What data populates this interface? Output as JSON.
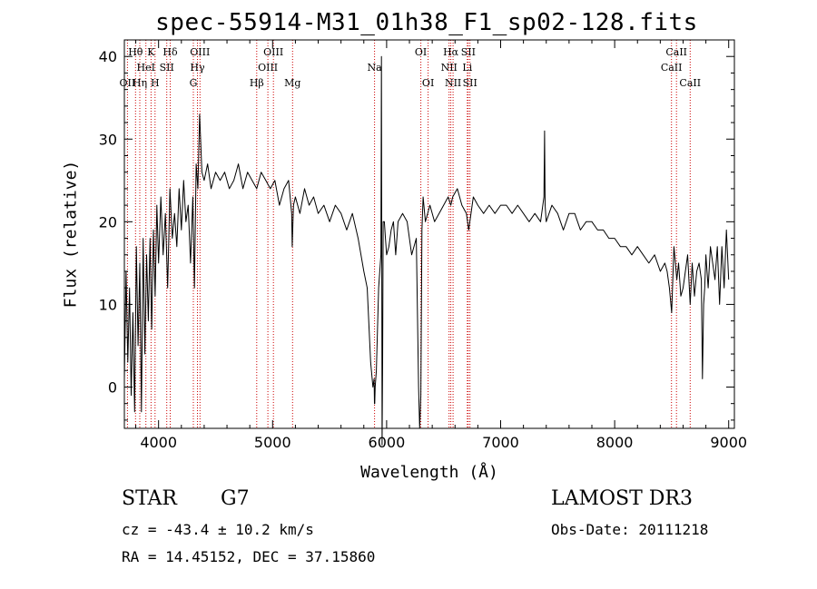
{
  "chart_data": {
    "type": "line",
    "title": "spec-55914-M31_01h38_F1_sp02-128.fits",
    "xlabel": "Wavelength (Å)",
    "ylabel": "Flux (relative)",
    "xlim": [
      3700,
      9050
    ],
    "ylim": [
      -5,
      42
    ],
    "xticks": [
      4000,
      5000,
      6000,
      7000,
      8000,
      9000
    ],
    "yticks": [
      0,
      10,
      20,
      30,
      40
    ],
    "grid": false,
    "series": [
      {
        "name": "flux",
        "x": [
          3700,
          3715,
          3730,
          3745,
          3760,
          3775,
          3790,
          3805,
          3820,
          3835,
          3850,
          3865,
          3880,
          3895,
          3910,
          3925,
          3940,
          3955,
          3970,
          3985,
          4000,
          4020,
          4040,
          4060,
          4080,
          4100,
          4120,
          4140,
          4160,
          4180,
          4200,
          4220,
          4240,
          4260,
          4280,
          4300,
          4315,
          4330,
          4345,
          4360,
          4380,
          4400,
          4430,
          4460,
          4500,
          4540,
          4580,
          4620,
          4660,
          4700,
          4740,
          4780,
          4820,
          4861,
          4900,
          4940,
          4980,
          5020,
          5060,
          5100,
          5140,
          5167,
          5172,
          5183,
          5200,
          5240,
          5280,
          5320,
          5360,
          5400,
          5450,
          5500,
          5550,
          5600,
          5650,
          5700,
          5750,
          5800,
          5830,
          5860,
          5880,
          5890,
          5893,
          5896,
          5900,
          5910,
          5930,
          5950,
          5955,
          5960,
          5965,
          5970,
          5980,
          5990,
          6000,
          6020,
          6040,
          6060,
          6080,
          6100,
          6140,
          6180,
          6220,
          6260,
          6280,
          6290,
          6300,
          6310,
          6320,
          6340,
          6380,
          6420,
          6460,
          6500,
          6540,
          6563,
          6580,
          6620,
          6660,
          6700,
          6720,
          6760,
          6800,
          6850,
          6900,
          6950,
          7000,
          7050,
          7100,
          7150,
          7200,
          7250,
          7300,
          7350,
          7380,
          7385,
          7390,
          7395,
          7400,
          7450,
          7500,
          7550,
          7600,
          7650,
          7700,
          7750,
          7800,
          7850,
          7900,
          7950,
          8000,
          8050,
          8100,
          8150,
          8200,
          8250,
          8300,
          8350,
          8400,
          8440,
          8460,
          8480,
          8500,
          8520,
          8545,
          8560,
          8580,
          8600,
          8620,
          8640,
          8662,
          8680,
          8700,
          8720,
          8740,
          8760,
          8770,
          8780,
          8790,
          8800,
          8820,
          8840,
          8860,
          8880,
          8900,
          8920,
          8940,
          8960,
          8980,
          9000
        ],
        "values": [
          1,
          14,
          3,
          12,
          -1,
          9,
          -3,
          17,
          5,
          15,
          -3,
          18,
          4,
          16,
          8,
          18,
          7,
          19,
          11,
          22,
          15,
          23,
          16,
          21,
          12,
          24,
          18,
          21,
          17,
          24,
          19,
          25,
          20,
          22,
          15,
          23,
          12,
          27,
          24,
          33,
          26,
          25,
          27,
          24,
          26,
          25,
          26,
          24,
          25,
          27,
          24,
          26,
          25,
          24,
          26,
          25,
          24,
          25,
          22,
          24,
          25,
          21,
          17,
          22,
          23,
          21,
          24,
          22,
          23,
          21,
          22,
          20,
          22,
          21,
          19,
          21,
          18,
          14,
          12,
          3,
          0,
          1,
          -2,
          -2,
          0,
          2,
          12,
          16,
          40,
          -7,
          3,
          20,
          20,
          18,
          16,
          17,
          19,
          20,
          16,
          20,
          21,
          20,
          16,
          18,
          0,
          -5,
          -1,
          19,
          23,
          20,
          22,
          20,
          21,
          22,
          23,
          22,
          23,
          24,
          22,
          21,
          19,
          23,
          22,
          21,
          22,
          21,
          22,
          22,
          21,
          22,
          21,
          20,
          21,
          20,
          23,
          31,
          22,
          21,
          20,
          22,
          21,
          19,
          21,
          21,
          19,
          20,
          20,
          19,
          19,
          18,
          18,
          17,
          17,
          16,
          17,
          16,
          15,
          16,
          14,
          15,
          14,
          12,
          9,
          17,
          13,
          15,
          11,
          12,
          14,
          16,
          10,
          15,
          11,
          14,
          15,
          13,
          1,
          10,
          12,
          16,
          12,
          17,
          15,
          13,
          17,
          10,
          17,
          12,
          19,
          13
        ],
        "color": "#000000"
      }
    ],
    "line_markers": [
      {
        "label": "OII",
        "wavelength": 3727,
        "row": 2
      },
      {
        "label": "Hθ",
        "wavelength": 3798,
        "row": 0
      },
      {
        "label": "Hη",
        "wavelength": 3835,
        "row": 2
      },
      {
        "label": "HeI",
        "wavelength": 3889,
        "row": 1
      },
      {
        "label": "K",
        "wavelength": 3934,
        "row": 0
      },
      {
        "label": "H",
        "wavelength": 3969,
        "row": 2
      },
      {
        "label": "SII",
        "wavelength": 4072,
        "row": 1
      },
      {
        "label": "Hδ",
        "wavelength": 4102,
        "row": 0
      },
      {
        "label": "G",
        "wavelength": 4305,
        "row": 2
      },
      {
        "label": "Hγ",
        "wavelength": 4341,
        "row": 1
      },
      {
        "label": "OIII",
        "wavelength": 4363,
        "row": 0
      },
      {
        "label": "Hβ",
        "wavelength": 4861,
        "row": 2
      },
      {
        "label": "OIII",
        "wavelength": 4959,
        "row": 1
      },
      {
        "label": "OIII",
        "wavelength": 5007,
        "row": 0
      },
      {
        "label": "Mg",
        "wavelength": 5175,
        "row": 2
      },
      {
        "label": "Na",
        "wavelength": 5894,
        "row": 1
      },
      {
        "label": "OI",
        "wavelength": 6300,
        "row": 0
      },
      {
        "label": "OI",
        "wavelength": 6364,
        "row": 2
      },
      {
        "label": "NII",
        "wavelength": 6548,
        "row": 1
      },
      {
        "label": "Hα",
        "wavelength": 6563,
        "row": 0
      },
      {
        "label": "NII",
        "wavelength": 6583,
        "row": 2
      },
      {
        "label": "Li",
        "wavelength": 6708,
        "row": 1
      },
      {
        "label": "SII",
        "wavelength": 6716,
        "row": 0
      },
      {
        "label": "SII",
        "wavelength": 6731,
        "row": 2
      },
      {
        "label": "CaII",
        "wavelength": 8498,
        "row": 1
      },
      {
        "label": "CaII",
        "wavelength": 8542,
        "row": 0
      },
      {
        "label": "CaII",
        "wavelength": 8662,
        "row": 2
      }
    ],
    "marker_color": "#cc0000"
  },
  "info": {
    "class": "STAR",
    "subclass": "G7",
    "survey": "LAMOST DR3",
    "cz": "cz = -43.4 ± 10.2 km/s",
    "obs_date": "Obs-Date: 20111218",
    "radec": "RA =  14.45152, DEC =  37.15860"
  }
}
